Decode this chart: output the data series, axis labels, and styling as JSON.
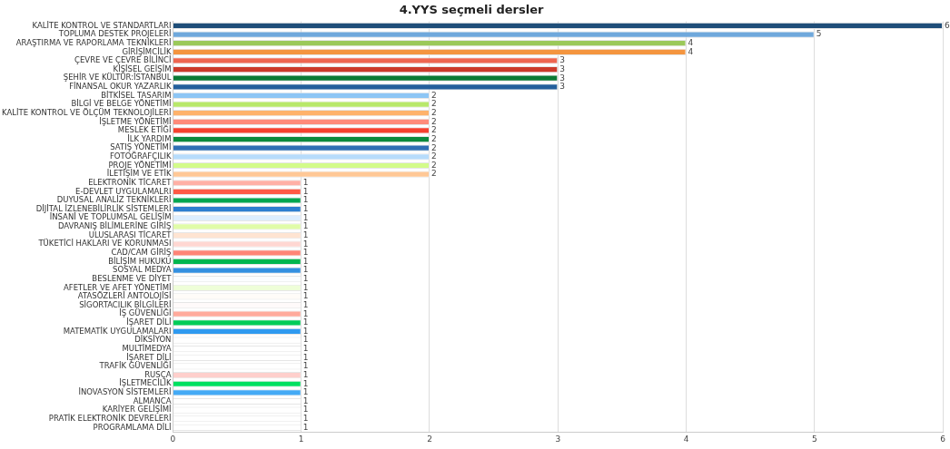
{
  "chart_data": {
    "type": "bar",
    "orientation": "horizontal",
    "title": "4.YYS seçmeli dersler",
    "categories": [
      "KALİTE KONTROL VE STANDARTLARI",
      "TOPLUMA DESTEK PROJELERİ",
      "ARAŞTIRMA VE RAPORLAMA TEKNİKLERİ",
      "GİRİŞİMCİLİK",
      "ÇEVRE VE ÇEVRE BİLİNCİ",
      "KİŞİSEL GEİŞİM",
      "ŞEHİR VE KÜLTÜR:İSTANBUL",
      "FİNANSAL OKUR YAZARLIK",
      "BİTKİSEL TASARIM",
      "BİLGİ VE BELGE YÖNETİMİ",
      "KALİTE KONTROL VE ÖLÇÜM TEKNOLOJİLERİ",
      "İŞLETME YÖNETİMİ",
      "MESLEK ETİĞİ",
      "İLK YARDIM",
      "SATIŞ YÖNETİMİ",
      "FOTOĞRAFÇILIK",
      "PROJE YÖNETİMİ",
      "İLETİŞİM VE ETİK",
      "ELEKTRONİK TİCARET",
      "E-DEVLET UYGULAMALRI",
      "DUYUSAL ANALİZ TEKNİKLERİ",
      "DİJİTAL İZLENEBİLİRLİK SİSTEMLERİ",
      "İNSANİ VE TOPLUMSAL GELİŞİM",
      "DAVRANIŞ BİLİMLERİNE GİRİŞ",
      "ULUSLARASI TİCARET",
      "TÜKETİCİ HAKLARI VE KORUNMASI",
      "CAD/CAM GİRİŞ",
      "BİLİŞİM HUKUKU",
      "SOSYAL MEDYA",
      "BESLENME VE DİYET",
      "AFETLER VE AFET YÖNETİMİ",
      "ATASÖZLERİ ANTOLOJİSİ",
      "SİGORTACILIK BİLGİLERİ",
      "İŞ GÜVENLİĞİ",
      "İŞARET DİLİ",
      "MATEMATİK UYGULAMALARI",
      "DİKSİYON",
      "MULTİMEDYA",
      "İŞARET DİLİ",
      "TRAFİK GÜVENLİĞİ",
      "RUSÇA",
      "İŞLETMECİLİK",
      "İNOVASYON SİSTEMLERİ",
      "ALMANCA",
      "KARİYER GELİŞİMİ",
      "PRATİK ELEKTRONİK DEVRELERİ",
      "PROGRAMLAMA DİLİ"
    ],
    "values": [
      6,
      5,
      4,
      4,
      3,
      3,
      3,
      3,
      2,
      2,
      2,
      2,
      2,
      2,
      2,
      2,
      2,
      2,
      1,
      1,
      1,
      1,
      1,
      1,
      1,
      1,
      1,
      1,
      1,
      1,
      1,
      1,
      1,
      1,
      1,
      1,
      1,
      1,
      1,
      1,
      1,
      1,
      1,
      1,
      1,
      1,
      1
    ],
    "colors": [
      "#1f4e79",
      "#6fa8dc",
      "#9bc95a",
      "#f4953f",
      "#ee6650",
      "#cc3a2a",
      "#0b7a35",
      "#245f9c",
      "#8dc6f5",
      "#b8e86a",
      "#ffb26b",
      "#ff8b7a",
      "#f5412f",
      "#0b8a3e",
      "#2f6fb5",
      "#b7dcfb",
      "#d3fb8a",
      "#ffc896",
      "#ffb0a6",
      "#ff5a45",
      "#00a650",
      "#2e7fd0",
      "#ddeeff",
      "#e0fca8",
      "#ffe4d2",
      "#ffd7d2",
      "#ff8577",
      "#00b64e",
      "#3390e0",
      "#fbfdff",
      "#eefed8",
      "#fffcf8",
      "#fffafa",
      "#ffaa9c",
      "#00cc58",
      "#2f9af0",
      "#ffffff",
      "#ffffff",
      "#ffffff",
      "#ffffff",
      "#ffcfcc",
      "#00e060",
      "#44aaf5",
      "#ffffff",
      "#ffffff",
      "#ffffff",
      "#ffffff"
    ],
    "xlim": [
      0,
      6
    ],
    "xticks": [
      0,
      1,
      2,
      3,
      4,
      5,
      6
    ],
    "grid": "x",
    "legend": false,
    "data_labels": true
  }
}
